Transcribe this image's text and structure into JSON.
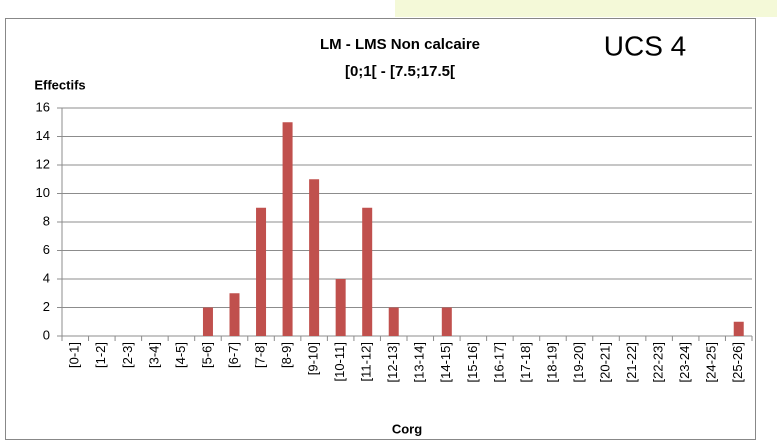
{
  "chart_data": {
    "type": "bar",
    "title": "LM - LMS Non calcaire",
    "subtitle": "[0;1[ - [7.5;17.5[",
    "annotation": "UCS 4",
    "y_label": "Effectifs",
    "x_label": "Corg",
    "categories": [
      "[0-1]",
      "[1-2]",
      "[2-3]",
      "[3-4]",
      "[4-5]",
      "[5-6]",
      "[6-7]",
      "[7-8]",
      "[8-9]",
      "[9-10]",
      "[10-11]",
      "[11-12]",
      "[12-13]",
      "[13-14]",
      "[14-15]",
      "[15-16]",
      "[16-17]",
      "[17-18]",
      "[18-19]",
      "[19-20]",
      "[20-21]",
      "[21-22]",
      "[22-23]",
      "[23-24]",
      "[24-25]",
      "[25-26]"
    ],
    "values": [
      0,
      0,
      0,
      0,
      0,
      2,
      3,
      9,
      15,
      11,
      4,
      9,
      2,
      0,
      2,
      0,
      0,
      0,
      0,
      0,
      0,
      0,
      0,
      0,
      0,
      1
    ],
    "color": "#c0504d",
    "ylim": [
      0,
      16
    ],
    "yticks": [
      0,
      2,
      4,
      6,
      8,
      10,
      12,
      14,
      16
    ],
    "grid": true
  }
}
